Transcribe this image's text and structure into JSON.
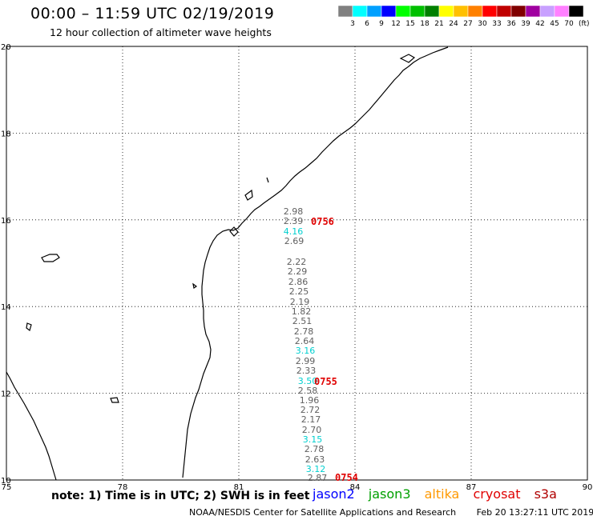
{
  "header": {
    "title": "00:00 – 11:59 UTC 02/19/2019",
    "subtitle": "12 hour collection of altimeter wave heights"
  },
  "legend": {
    "colors": [
      "#808080",
      "#00ffff",
      "#00a0ff",
      "#0000ff",
      "#00ff00",
      "#00c000",
      "#008000",
      "#ffff00",
      "#ffc000",
      "#ff8000",
      "#ff0000",
      "#c00000",
      "#800000",
      "#a000a0",
      "#c8a0ff",
      "#ff80ff",
      "#000000"
    ],
    "labels": [
      "3",
      "6",
      "9",
      "12",
      "15",
      "18",
      "21",
      "24",
      "27",
      "30",
      "33",
      "36",
      "39",
      "42",
      "45",
      "70"
    ],
    "unit": "(ft)"
  },
  "axes": {
    "lon_ticks": [
      "75",
      "78",
      "81",
      "84",
      "87",
      "90"
    ],
    "lat_ticks": [
      "20",
      "18",
      "16",
      "14",
      "12",
      "10"
    ]
  },
  "observations": [
    {
      "value": "2.98",
      "color": "#606060"
    },
    {
      "value": "2.39",
      "color": "#606060"
    },
    {
      "value": "4.16",
      "color": "#00d0d0"
    },
    {
      "value": "2.69",
      "color": "#606060"
    },
    {
      "value": "2.22",
      "color": "#606060"
    },
    {
      "value": "2.29",
      "color": "#606060"
    },
    {
      "value": "2.86",
      "color": "#606060"
    },
    {
      "value": "2.25",
      "color": "#606060"
    },
    {
      "value": "2.19",
      "color": "#606060"
    },
    {
      "value": "1.82",
      "color": "#606060"
    },
    {
      "value": "2.51",
      "color": "#606060"
    },
    {
      "value": "2.78",
      "color": "#606060"
    },
    {
      "value": "2.64",
      "color": "#606060"
    },
    {
      "value": "3.16",
      "color": "#00d0d0"
    },
    {
      "value": "2.99",
      "color": "#606060"
    },
    {
      "value": "2.33",
      "color": "#606060"
    },
    {
      "value": "3.50",
      "color": "#00d0d0"
    },
    {
      "value": "2.58",
      "color": "#606060"
    },
    {
      "value": "1.96",
      "color": "#606060"
    },
    {
      "value": "2.72",
      "color": "#606060"
    },
    {
      "value": "2.17",
      "color": "#606060"
    },
    {
      "value": "2.70",
      "color": "#606060"
    },
    {
      "value": "3.15",
      "color": "#00d0d0"
    },
    {
      "value": "2.78",
      "color": "#606060"
    },
    {
      "value": "2.63",
      "color": "#606060"
    },
    {
      "value": "3.12",
      "color": "#00d0d0"
    },
    {
      "value": "2.87",
      "color": "#606060"
    }
  ],
  "times": [
    {
      "value": "0756",
      "color": "#e00000"
    },
    {
      "value": "0755",
      "color": "#e00000"
    },
    {
      "value": "0754",
      "color": "#e00000"
    }
  ],
  "footer": {
    "note": "note: 1) Time is in UTC; 2) SWH is in feet",
    "satellites": [
      {
        "name": "jason2",
        "color": "#0000ff"
      },
      {
        "name": "jason3",
        "color": "#00a000"
      },
      {
        "name": "altika",
        "color": "#ff9900"
      },
      {
        "name": "cryosat",
        "color": "#e00000"
      },
      {
        "name": "s3a",
        "color": "#b00000"
      }
    ],
    "credit": "NOAA/NESDIS Center for Satellite Applications and Research",
    "timestamp": "Feb 20 13:27:11 UTC 2019"
  }
}
